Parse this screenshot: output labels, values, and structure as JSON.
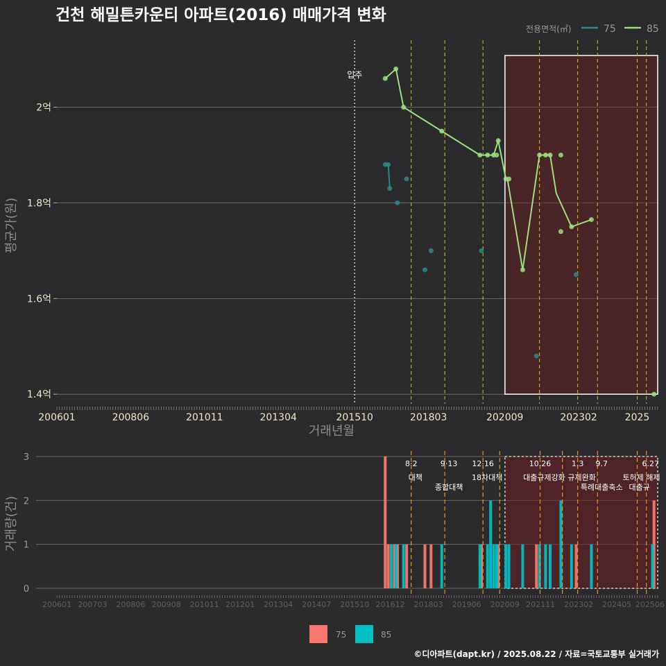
{
  "title": "건천 해밀튼카운티 아파트(2016) 매매가격 변화",
  "credit": "©디아파트(dapt.kr) / 2025.08.22 / 자료=국토교통부 실거래가",
  "legend_top": {
    "title": "전용면적(㎡)",
    "items": [
      {
        "label": "75",
        "color": "#2a8a8a"
      },
      {
        "label": "85",
        "color": "#9be07a"
      }
    ]
  },
  "legend_bottom": {
    "items": [
      {
        "label": "75",
        "color": "#f8766d"
      },
      {
        "label": "85",
        "color": "#00bfc4"
      }
    ]
  },
  "chart_data": [
    {
      "type": "line",
      "title": "건천 해밀튼카운티 아파트(2016) 매매가격 변화",
      "xlabel": "거래년월",
      "ylabel": "평균가(원)",
      "x_tick_labels": [
        "200601",
        "200806",
        "201011",
        "201304",
        "201510",
        "201803",
        "202009",
        "202302",
        "2025"
      ],
      "y_tick_labels": [
        "1.4억",
        "1.6억",
        "1.8억",
        "2억"
      ],
      "ylim": [
        1.38,
        2.14
      ],
      "y_unit": "억",
      "move_in": {
        "x": 2015.75,
        "label": "입주"
      },
      "policy_lines": [
        2017.6,
        2018.7,
        2019.95,
        2021.8,
        2023.05,
        2023.7,
        2025.0,
        2025.3
      ],
      "highlight_range": [
        2020.67,
        2025.67
      ],
      "series": [
        {
          "name": "75",
          "color": "#2a8a8a",
          "line": [
            [
              2016.75,
              1.88
            ],
            [
              2016.85,
              1.88
            ],
            [
              2016.9,
              1.83
            ]
          ],
          "points": [
            [
              2016.75,
              1.88
            ],
            [
              2016.85,
              1.88
            ],
            [
              2016.9,
              1.83
            ],
            [
              2017.15,
              1.8
            ],
            [
              2017.45,
              1.85
            ],
            [
              2018.05,
              1.66
            ],
            [
              2018.25,
              1.7
            ],
            [
              2019.9,
              1.7
            ],
            [
              2021.7,
              1.48
            ],
            [
              2023.0,
              1.65
            ]
          ]
        },
        {
          "name": "85",
          "color": "#9be07a",
          "line": [
            [
              2016.75,
              2.06
            ],
            [
              2017.1,
              2.08
            ],
            [
              2017.35,
              2.0
            ],
            [
              2018.6,
              1.95
            ],
            [
              2019.85,
              1.9
            ],
            [
              2020.1,
              1.9
            ],
            [
              2020.3,
              1.9
            ],
            [
              2020.45,
              1.93
            ],
            [
              2020.7,
              1.85
            ],
            [
              2020.75,
              1.85
            ],
            [
              2021.25,
              1.66
            ],
            [
              2021.8,
              1.9
            ],
            [
              2022.0,
              1.9
            ],
            [
              2022.15,
              1.9
            ],
            [
              2022.35,
              1.82
            ],
            [
              2022.85,
              1.75
            ],
            [
              2023.5,
              1.765
            ]
          ],
          "points": [
            [
              2016.75,
              2.06
            ],
            [
              2017.1,
              2.08
            ],
            [
              2017.35,
              2.0
            ],
            [
              2018.6,
              1.95
            ],
            [
              2019.85,
              1.9
            ],
            [
              2020.1,
              1.9
            ],
            [
              2020.3,
              1.9
            ],
            [
              2020.4,
              1.9
            ],
            [
              2020.45,
              1.93
            ],
            [
              2020.7,
              1.85
            ],
            [
              2020.8,
              1.85
            ],
            [
              2021.25,
              1.66
            ],
            [
              2021.8,
              1.9
            ],
            [
              2022.0,
              1.9
            ],
            [
              2022.15,
              1.9
            ],
            [
              2022.5,
              1.74
            ],
            [
              2022.5,
              1.9
            ],
            [
              2022.85,
              1.75
            ],
            [
              2023.5,
              1.765
            ],
            [
              2025.55,
              1.4
            ]
          ]
        }
      ]
    },
    {
      "type": "bar",
      "xlabel": "",
      "ylabel": "거래량(건)",
      "x_tick_labels": [
        "200601",
        "200703",
        "200806",
        "200908",
        "201011",
        "201201",
        "201304",
        "201407",
        "201510",
        "201612",
        "201803",
        "201906",
        "202009",
        "202111",
        "202302",
        "202405",
        "202506"
      ],
      "y_tick_labels": [
        "0",
        "1",
        "2",
        "3"
      ],
      "ylim": [
        0,
        3.1
      ],
      "policy_events": [
        {
          "x": 2017.6,
          "date": "8·2",
          "label": "대책"
        },
        {
          "x": 2018.7,
          "date": "9·13",
          "label": "종합대책"
        },
        {
          "x": 2019.95,
          "date": "12·16",
          "label": "18차대책"
        },
        {
          "x": 2020.5,
          "date": "",
          "label": ""
        },
        {
          "x": 2021.82,
          "date": "10.26",
          "label": "대출규제강화"
        },
        {
          "x": 2022.55,
          "date": "",
          "label": ""
        },
        {
          "x": 2023.05,
          "date": "1.3",
          "label": "규제완화"
        },
        {
          "x": 2023.7,
          "date": "9.7",
          "label": "특례대출축소"
        },
        {
          "x": 2025.0,
          "date": "",
          "label": "토허제 해제"
        },
        {
          "x": 2025.3,
          "date": "6.27",
          "label": "대출규"
        }
      ],
      "highlight_range": [
        2020.67,
        2025.67
      ],
      "series": [
        {
          "name": "75",
          "color": "#f8766d",
          "bars": [
            [
              2016.75,
              3
            ],
            [
              2016.85,
              1
            ],
            [
              2017.05,
              1
            ],
            [
              2017.15,
              1
            ],
            [
              2017.45,
              1
            ],
            [
              2018.05,
              1
            ],
            [
              2018.25,
              1
            ],
            [
              2019.9,
              1
            ],
            [
              2020.45,
              1
            ],
            [
              2021.7,
              1
            ],
            [
              2023.0,
              1
            ],
            [
              2025.55,
              2
            ]
          ]
        },
        {
          "name": "85",
          "color": "#00bfc4",
          "bars": [
            [
              2016.95,
              1
            ],
            [
              2017.1,
              1
            ],
            [
              2017.35,
              1
            ],
            [
              2018.6,
              1
            ],
            [
              2019.85,
              1
            ],
            [
              2020.1,
              1
            ],
            [
              2020.2,
              2
            ],
            [
              2020.3,
              1
            ],
            [
              2020.4,
              1
            ],
            [
              2020.7,
              1
            ],
            [
              2020.8,
              1
            ],
            [
              2021.25,
              1
            ],
            [
              2021.8,
              1
            ],
            [
              2022.0,
              1
            ],
            [
              2022.15,
              1
            ],
            [
              2022.5,
              2
            ],
            [
              2022.85,
              1
            ],
            [
              2023.5,
              1
            ],
            [
              2025.5,
              1
            ]
          ]
        }
      ]
    }
  ]
}
